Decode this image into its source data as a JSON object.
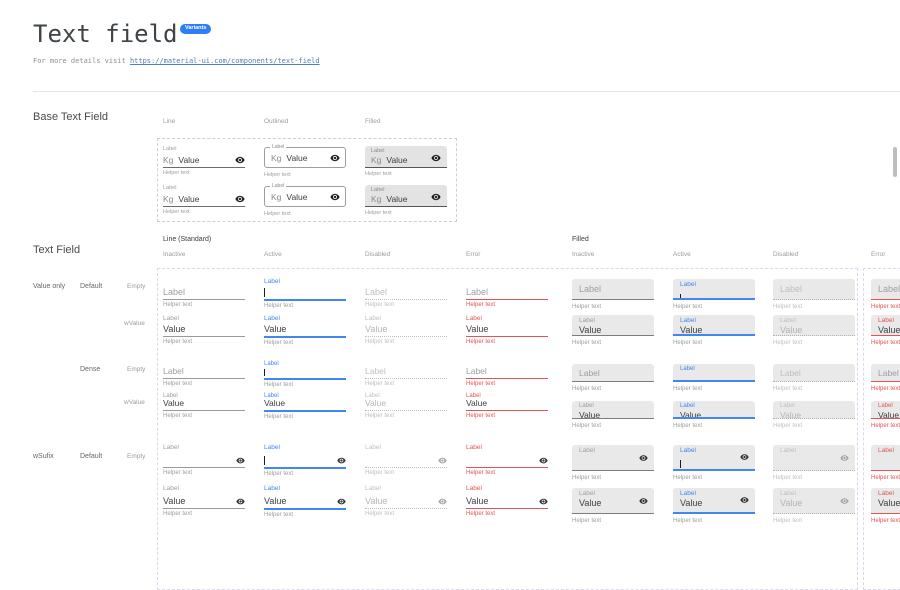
{
  "page": {
    "title": "Text field",
    "badge": "Variants",
    "subtitle_text": "For more details visit",
    "subtitle_link": "https://material-ui.com/components/text-field"
  },
  "field": {
    "label": "Label",
    "value": "Value",
    "prefix": "Kg",
    "helper": "Helper text"
  },
  "base_section": {
    "title": "Base Text Field",
    "column_headers": [
      "Line",
      "Outlined",
      "Filled"
    ]
  },
  "grid_section": {
    "title": "Text Field",
    "group_headers": [
      "Line (Standard)",
      "Filled"
    ],
    "state_headers": [
      "Inactive",
      "Active",
      "Disabled",
      "Error",
      "Inactive",
      "Active",
      "Disabled",
      "Error"
    ],
    "row_labels": [
      "Value only",
      "Default",
      "Empty",
      "wValue",
      "Dense",
      "Empty",
      "wValue",
      "wSufix",
      "Default",
      "Empty"
    ]
  },
  "icons": {
    "suffix_icon": "visibility-eye"
  },
  "colors": {
    "accent": "#4285f4",
    "error": "#e05656",
    "placeholder": "#9e9e9e",
    "text": "#3c4043",
    "disabled": "#bfbfbf",
    "disabled_text": "#b5b5b5",
    "helper": "#9e9e9e",
    "filled_bg": "#e9e9e9",
    "filled_border": "#7d7d7d",
    "underline": "#9a9a9a",
    "base_underline": "#6b6b6b",
    "outline_border": "#9e9e9e",
    "icon": "#2f2f2f",
    "icon_disabled": "#a6a6a6",
    "link": "#4d7ec1",
    "badge_bg": "#2e7df6",
    "dash_grid": "#d8d8ef",
    "dash_base": "#cfcfcf"
  }
}
